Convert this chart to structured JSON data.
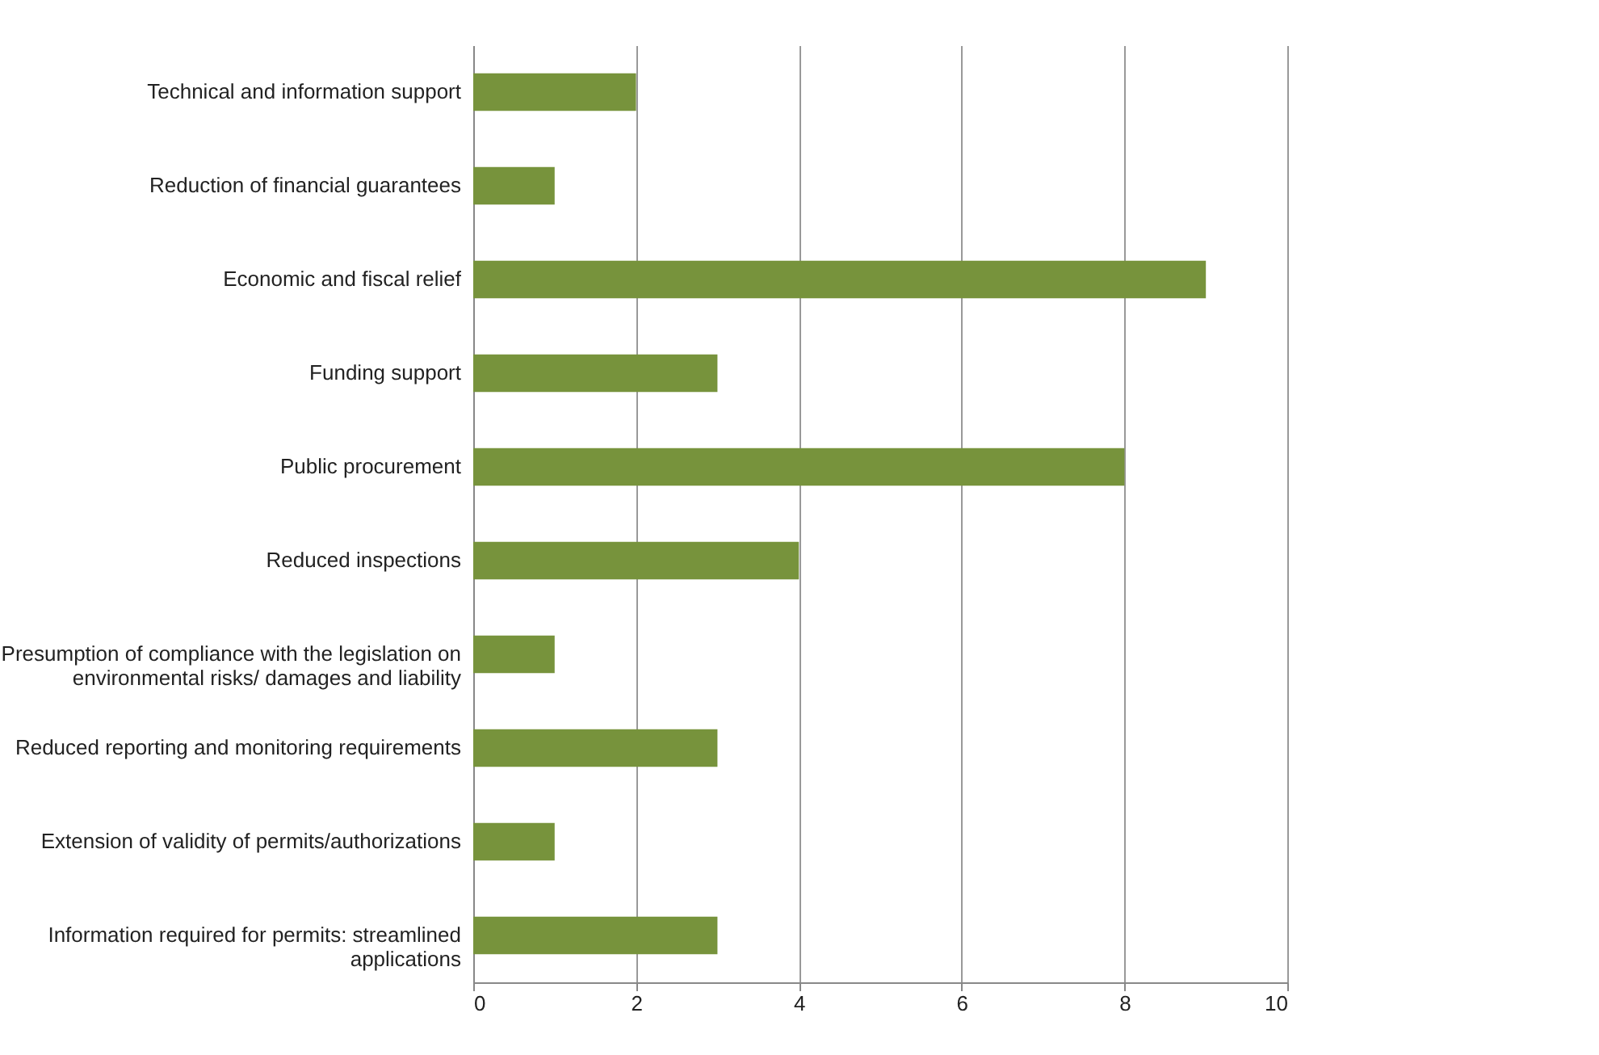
{
  "chart_data": {
    "type": "bar",
    "orientation": "horizontal",
    "categories": [
      "Technical and information support",
      "Reduction of financial guarantees",
      "Economic and fiscal relief",
      "Funding support",
      "Public procurement",
      "Reduced inspections",
      "Presumption of compliance with the legislation on environmental risks/ damages and liability",
      "Reduced reporting and monitoring requirements",
      "Extension of validity of permits/authorizations",
      "Information required for permits: streamlined applications"
    ],
    "values": [
      2,
      1,
      9,
      3,
      8,
      4,
      1,
      3,
      1,
      3
    ],
    "color": "#77933c",
    "xlim": [
      0,
      10
    ],
    "xticks": [
      0,
      2,
      4,
      6,
      8,
      10
    ],
    "grid": "x"
  }
}
